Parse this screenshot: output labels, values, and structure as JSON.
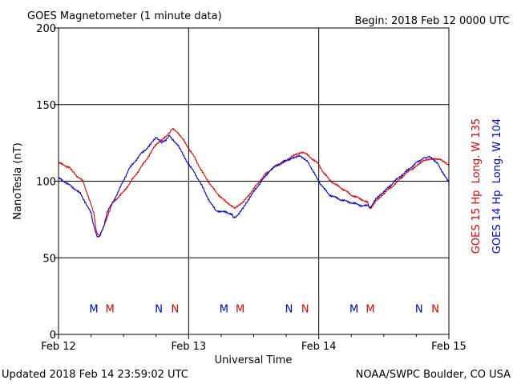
{
  "header": {
    "title": "GOES Magnetometer (1 minute data)",
    "begin": "Begin:  2018 Feb 12 0000 UTC"
  },
  "footer": {
    "updated": "Updated 2018 Feb 14 23:59:02 UTC",
    "source": "NOAA/SWPC Boulder, CO USA"
  },
  "colors": {
    "goes15": "#e00000",
    "goes14": "#0000d0",
    "axes": "#000000"
  },
  "chart_data": {
    "type": "line",
    "xlabel": "Universal Time",
    "ylabel": "NanoTesla (nT)",
    "xlim": [
      0,
      72
    ],
    "ylim": [
      0,
      200
    ],
    "x_unit": "hours since 2018 Feb 12 0000 UTC",
    "grid": true,
    "x_ticks": [
      {
        "x": 0,
        "label": "Feb 12"
      },
      {
        "x": 24,
        "label": "Feb 13"
      },
      {
        "x": 48,
        "label": "Feb 14"
      },
      {
        "x": 72,
        "label": "Feb 15"
      }
    ],
    "y_ticks": [
      {
        "y": 0,
        "label": "0"
      },
      {
        "y": 50,
        "label": "50"
      },
      {
        "y": 100,
        "label": "100"
      },
      {
        "y": 150,
        "label": "150"
      },
      {
        "y": 200,
        "label": "200"
      }
    ],
    "series": [
      {
        "name": "GOES 15 Hp  Long. W 135",
        "color": "#e00000",
        "points": [
          [
            0,
            112
          ],
          [
            2,
            109
          ],
          [
            3.5,
            103
          ],
          [
            4.5,
            100
          ],
          [
            5.5,
            90
          ],
          [
            6.5,
            79
          ],
          [
            7,
            67
          ],
          [
            7.5,
            64
          ],
          [
            8,
            67
          ],
          [
            9,
            77
          ],
          [
            10,
            86
          ],
          [
            12,
            93
          ],
          [
            14,
            103
          ],
          [
            16,
            113
          ],
          [
            18,
            124
          ],
          [
            19.5,
            128
          ],
          [
            20.5,
            132
          ],
          [
            21,
            134
          ],
          [
            22,
            132
          ],
          [
            23,
            127
          ],
          [
            25,
            116
          ],
          [
            27,
            103
          ],
          [
            29,
            93
          ],
          [
            31,
            86
          ],
          [
            32.5,
            82
          ],
          [
            34,
            86
          ],
          [
            36,
            95
          ],
          [
            38,
            104
          ],
          [
            40,
            110
          ],
          [
            42,
            113
          ],
          [
            43.5,
            117
          ],
          [
            45,
            119
          ],
          [
            46,
            117
          ],
          [
            47,
            114
          ],
          [
            48,
            111
          ],
          [
            49,
            105
          ],
          [
            50,
            101
          ],
          [
            51,
            98
          ],
          [
            52,
            96
          ],
          [
            54,
            91
          ],
          [
            56,
            88
          ],
          [
            57,
            86
          ],
          [
            57.5,
            82
          ],
          [
            58.5,
            87
          ],
          [
            60,
            92
          ],
          [
            62,
            98
          ],
          [
            64,
            105
          ],
          [
            66,
            110
          ],
          [
            67.5,
            114
          ],
          [
            69,
            115
          ],
          [
            70.5,
            114
          ],
          [
            72,
            110
          ]
        ]
      },
      {
        "name": "GOES 14 Hp  Long. W 104",
        "color": "#0000d0",
        "points": [
          [
            0,
            102
          ],
          [
            1,
            100
          ],
          [
            3,
            95
          ],
          [
            4,
            92
          ],
          [
            5,
            86
          ],
          [
            6,
            79
          ],
          [
            6.5,
            71
          ],
          [
            7,
            65
          ],
          [
            7.3,
            63
          ],
          [
            7.8,
            66
          ],
          [
            8.3,
            70
          ],
          [
            9,
            80
          ],
          [
            10,
            86
          ],
          [
            11,
            93
          ],
          [
            13,
            108
          ],
          [
            15,
            117
          ],
          [
            17,
            124
          ],
          [
            18,
            129
          ],
          [
            19,
            125
          ],
          [
            19.8,
            127
          ],
          [
            20.5,
            130
          ],
          [
            21,
            127
          ],
          [
            22,
            124
          ],
          [
            23,
            117
          ],
          [
            24,
            111
          ],
          [
            25,
            106
          ],
          [
            26,
            100
          ],
          [
            27,
            93
          ],
          [
            28,
            86
          ],
          [
            29,
            81
          ],
          [
            30,
            80
          ],
          [
            31,
            80
          ],
          [
            32,
            78
          ],
          [
            32.5,
            76
          ],
          [
            33.5,
            80
          ],
          [
            35,
            88
          ],
          [
            37,
            98
          ],
          [
            39,
            107
          ],
          [
            41,
            112
          ],
          [
            43,
            115
          ],
          [
            44.5,
            117
          ],
          [
            46,
            113
          ],
          [
            47,
            106
          ],
          [
            48,
            100
          ],
          [
            49,
            95
          ],
          [
            50,
            91
          ],
          [
            52,
            88
          ],
          [
            54,
            86
          ],
          [
            56,
            84
          ],
          [
            57,
            84
          ],
          [
            57.5,
            83
          ],
          [
            58.5,
            88
          ],
          [
            60,
            93
          ],
          [
            62,
            100
          ],
          [
            64,
            106
          ],
          [
            66,
            112
          ],
          [
            67.3,
            115
          ],
          [
            68.5,
            116
          ],
          [
            70,
            111
          ],
          [
            71,
            105
          ],
          [
            72,
            99
          ]
        ]
      }
    ],
    "markers": [
      {
        "label": "M",
        "x": 6.5,
        "y": 17,
        "color": "#0000d0"
      },
      {
        "label": "M",
        "x": 9.5,
        "y": 17,
        "color": "#e00000"
      },
      {
        "label": "N",
        "x": 18.5,
        "y": 17,
        "color": "#0000d0"
      },
      {
        "label": "N",
        "x": 21.5,
        "y": 17,
        "color": "#e00000"
      },
      {
        "label": "M",
        "x": 30.5,
        "y": 17,
        "color": "#0000d0"
      },
      {
        "label": "M",
        "x": 33.5,
        "y": 17,
        "color": "#e00000"
      },
      {
        "label": "N",
        "x": 42.5,
        "y": 17,
        "color": "#0000d0"
      },
      {
        "label": "N",
        "x": 45.5,
        "y": 17,
        "color": "#e00000"
      },
      {
        "label": "M",
        "x": 54.5,
        "y": 17,
        "color": "#0000d0"
      },
      {
        "label": "M",
        "x": 57.5,
        "y": 17,
        "color": "#e00000"
      },
      {
        "label": "N",
        "x": 66.5,
        "y": 17,
        "color": "#0000d0"
      },
      {
        "label": "N",
        "x": 69.5,
        "y": 17,
        "color": "#e00000"
      }
    ]
  }
}
